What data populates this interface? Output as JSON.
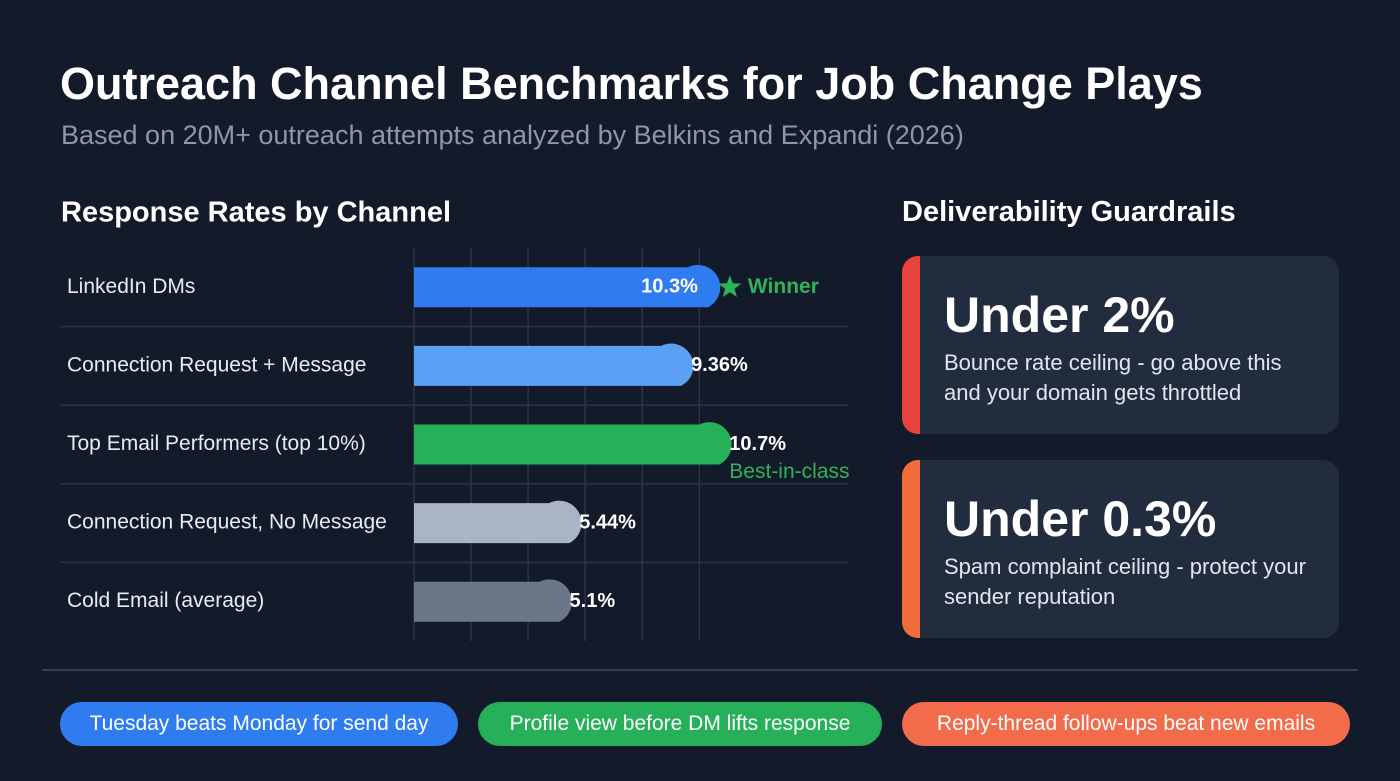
{
  "header": {
    "title": "Outreach Channel Benchmarks for Job Change Plays",
    "subtitle": "Based on 20M+ outreach attempts analyzed by Belkins and Expandi (2026)"
  },
  "chart_data": {
    "type": "bar",
    "orientation": "horizontal",
    "title": "Response Rates by Channel",
    "categories": [
      "LinkedIn DMs",
      "Connection Request + Message",
      "Top Email Performers (top 10%)",
      "Connection Request, No Message",
      "Cold Email (average)"
    ],
    "values": [
      10.3,
      9.36,
      10.7,
      5.44,
      5.1
    ],
    "value_labels": [
      "10.3%",
      "9.36%",
      "10.7%",
      "5.44%",
      "5.1%"
    ],
    "colors": [
      "#2f7cf0",
      "#5aa0f5",
      "#27b05a",
      "#a9b4c4",
      "#6b7789"
    ],
    "annotations": [
      "Winner",
      null,
      "Best-in-class",
      null,
      null
    ],
    "annotation_color": "#2fb35a",
    "xlim": [
      0,
      15
    ],
    "xticks": [
      0,
      2,
      4,
      6,
      8,
      10
    ],
    "grid": true
  },
  "guardrails": {
    "title": "Deliverability Guardrails",
    "cards": [
      {
        "value": "Under 2%",
        "text": "Bounce rate ceiling - go above this and your domain gets throttled",
        "color": "#e8423f"
      },
      {
        "value": "Under 0.3%",
        "text": "Spam complaint ceiling - protect your sender reputation",
        "color": "#f26b3a"
      }
    ]
  },
  "tips": [
    {
      "text": "Tuesday beats Monday for send day",
      "color": "#2f7cf0"
    },
    {
      "text": "Profile view before DM lifts response",
      "color": "#27b05a"
    },
    {
      "text": "Reply-thread follow-ups beat new emails",
      "color": "#f26b4a"
    }
  ]
}
